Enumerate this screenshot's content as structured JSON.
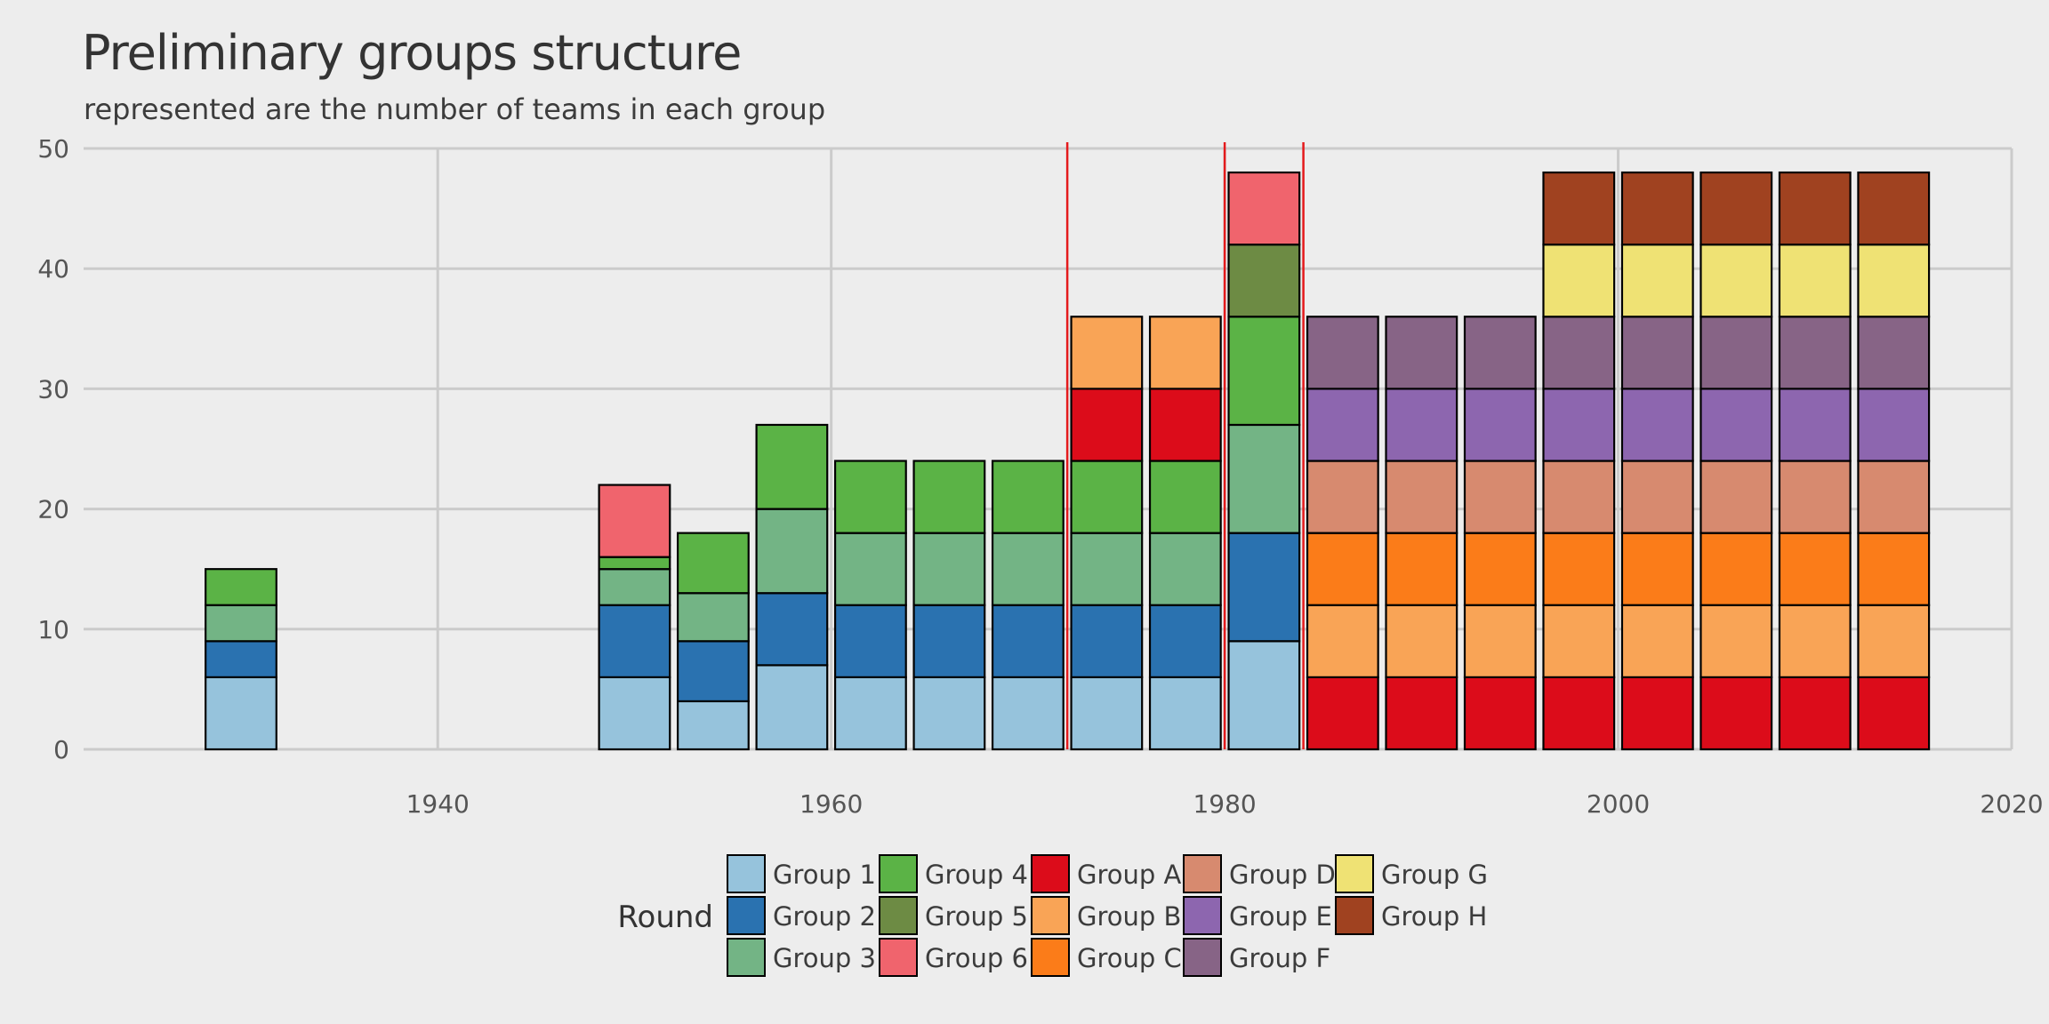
{
  "chart_data": {
    "type": "bar",
    "stacked": true,
    "title": "Preliminary groups structure",
    "subtitle": "represented are the number of teams in each group",
    "xlabel": "",
    "ylabel": "",
    "xlim": [
      1922,
      2020
    ],
    "ylim": [
      0,
      50
    ],
    "x_ticks": [
      1940,
      1960,
      1980,
      2000,
      2020
    ],
    "y_ticks": [
      0,
      10,
      20,
      30,
      40,
      50
    ],
    "grid": true,
    "bar_width_years": 3.6,
    "vertical_lines": [
      1972,
      1980,
      1984
    ],
    "vertical_line_color": "#e41a1c",
    "legend": {
      "title": "Round",
      "position": "bottom",
      "columns": [
        [
          "Group 1",
          "Group 2",
          "Group 3"
        ],
        [
          "Group 4",
          "Group 5",
          "Group 6"
        ],
        [
          "Group A",
          "Group B",
          "Group C"
        ],
        [
          "Group D",
          "Group E",
          "Group F"
        ],
        [
          "Group G",
          "Group H"
        ]
      ]
    },
    "colors": {
      "Group 1": "#96c3dc",
      "Group 2": "#2a72b0",
      "Group 3": "#73b485",
      "Group 4": "#5bb346",
      "Group 5": "#6d8b44",
      "Group 6": "#f0646d",
      "Group A": "#dc0c1a",
      "Group B": "#f9a456",
      "Group C": "#fb7c19",
      "Group D": "#d78a6f",
      "Group E": "#8d66af",
      "Group F": "#876486",
      "Group G": "#efe274",
      "Group H": "#a04220"
    },
    "bars": [
      {
        "x": 1930,
        "segments": [
          {
            "group": "Group 1",
            "value": 6
          },
          {
            "group": "Group 2",
            "value": 3
          },
          {
            "group": "Group 3",
            "value": 3
          },
          {
            "group": "Group 4",
            "value": 3
          }
        ]
      },
      {
        "x": 1950,
        "segments": [
          {
            "group": "Group 1",
            "value": 6
          },
          {
            "group": "Group 2",
            "value": 6
          },
          {
            "group": "Group 3",
            "value": 3
          },
          {
            "group": "Group 4",
            "value": 1
          },
          {
            "group": "Group 6",
            "value": 6
          }
        ]
      },
      {
        "x": 1954,
        "segments": [
          {
            "group": "Group 1",
            "value": 4
          },
          {
            "group": "Group 2",
            "value": 5
          },
          {
            "group": "Group 3",
            "value": 4
          },
          {
            "group": "Group 4",
            "value": 5
          }
        ]
      },
      {
        "x": 1958,
        "segments": [
          {
            "group": "Group 1",
            "value": 7
          },
          {
            "group": "Group 2",
            "value": 6
          },
          {
            "group": "Group 3",
            "value": 7
          },
          {
            "group": "Group 4",
            "value": 7
          }
        ]
      },
      {
        "x": 1962,
        "segments": [
          {
            "group": "Group 1",
            "value": 6
          },
          {
            "group": "Group 2",
            "value": 6
          },
          {
            "group": "Group 3",
            "value": 6
          },
          {
            "group": "Group 4",
            "value": 6
          }
        ]
      },
      {
        "x": 1966,
        "segments": [
          {
            "group": "Group 1",
            "value": 6
          },
          {
            "group": "Group 2",
            "value": 6
          },
          {
            "group": "Group 3",
            "value": 6
          },
          {
            "group": "Group 4",
            "value": 6
          }
        ]
      },
      {
        "x": 1970,
        "segments": [
          {
            "group": "Group 1",
            "value": 6
          },
          {
            "group": "Group 2",
            "value": 6
          },
          {
            "group": "Group 3",
            "value": 6
          },
          {
            "group": "Group 4",
            "value": 6
          }
        ]
      },
      {
        "x": 1974,
        "segments": [
          {
            "group": "Group 1",
            "value": 6
          },
          {
            "group": "Group 2",
            "value": 6
          },
          {
            "group": "Group 3",
            "value": 6
          },
          {
            "group": "Group 4",
            "value": 6
          },
          {
            "group": "Group A",
            "value": 6
          },
          {
            "group": "Group B",
            "value": 6
          }
        ]
      },
      {
        "x": 1978,
        "segments": [
          {
            "group": "Group 1",
            "value": 6
          },
          {
            "group": "Group 2",
            "value": 6
          },
          {
            "group": "Group 3",
            "value": 6
          },
          {
            "group": "Group 4",
            "value": 6
          },
          {
            "group": "Group A",
            "value": 6
          },
          {
            "group": "Group B",
            "value": 6
          }
        ]
      },
      {
        "x": 1982,
        "segments": [
          {
            "group": "Group 1",
            "value": 9
          },
          {
            "group": "Group 2",
            "value": 9
          },
          {
            "group": "Group 3",
            "value": 9
          },
          {
            "group": "Group 4",
            "value": 9
          },
          {
            "group": "Group 5",
            "value": 6
          },
          {
            "group": "Group 6",
            "value": 6
          }
        ]
      },
      {
        "x": 1986,
        "segments": [
          {
            "group": "Group A",
            "value": 6
          },
          {
            "group": "Group B",
            "value": 6
          },
          {
            "group": "Group C",
            "value": 6
          },
          {
            "group": "Group D",
            "value": 6
          },
          {
            "group": "Group E",
            "value": 6
          },
          {
            "group": "Group F",
            "value": 6
          }
        ]
      },
      {
        "x": 1990,
        "segments": [
          {
            "group": "Group A",
            "value": 6
          },
          {
            "group": "Group B",
            "value": 6
          },
          {
            "group": "Group C",
            "value": 6
          },
          {
            "group": "Group D",
            "value": 6
          },
          {
            "group": "Group E",
            "value": 6
          },
          {
            "group": "Group F",
            "value": 6
          }
        ]
      },
      {
        "x": 1994,
        "segments": [
          {
            "group": "Group A",
            "value": 6
          },
          {
            "group": "Group B",
            "value": 6
          },
          {
            "group": "Group C",
            "value": 6
          },
          {
            "group": "Group D",
            "value": 6
          },
          {
            "group": "Group E",
            "value": 6
          },
          {
            "group": "Group F",
            "value": 6
          }
        ]
      },
      {
        "x": 1998,
        "segments": [
          {
            "group": "Group A",
            "value": 6
          },
          {
            "group": "Group B",
            "value": 6
          },
          {
            "group": "Group C",
            "value": 6
          },
          {
            "group": "Group D",
            "value": 6
          },
          {
            "group": "Group E",
            "value": 6
          },
          {
            "group": "Group F",
            "value": 6
          },
          {
            "group": "Group G",
            "value": 6
          },
          {
            "group": "Group H",
            "value": 6
          }
        ]
      },
      {
        "x": 2002,
        "segments": [
          {
            "group": "Group A",
            "value": 6
          },
          {
            "group": "Group B",
            "value": 6
          },
          {
            "group": "Group C",
            "value": 6
          },
          {
            "group": "Group D",
            "value": 6
          },
          {
            "group": "Group E",
            "value": 6
          },
          {
            "group": "Group F",
            "value": 6
          },
          {
            "group": "Group G",
            "value": 6
          },
          {
            "group": "Group H",
            "value": 6
          }
        ]
      },
      {
        "x": 2006,
        "segments": [
          {
            "group": "Group A",
            "value": 6
          },
          {
            "group": "Group B",
            "value": 6
          },
          {
            "group": "Group C",
            "value": 6
          },
          {
            "group": "Group D",
            "value": 6
          },
          {
            "group": "Group E",
            "value": 6
          },
          {
            "group": "Group F",
            "value": 6
          },
          {
            "group": "Group G",
            "value": 6
          },
          {
            "group": "Group H",
            "value": 6
          }
        ]
      },
      {
        "x": 2010,
        "segments": [
          {
            "group": "Group A",
            "value": 6
          },
          {
            "group": "Group B",
            "value": 6
          },
          {
            "group": "Group C",
            "value": 6
          },
          {
            "group": "Group D",
            "value": 6
          },
          {
            "group": "Group E",
            "value": 6
          },
          {
            "group": "Group F",
            "value": 6
          },
          {
            "group": "Group G",
            "value": 6
          },
          {
            "group": "Group H",
            "value": 6
          }
        ]
      },
      {
        "x": 2014,
        "segments": [
          {
            "group": "Group A",
            "value": 6
          },
          {
            "group": "Group B",
            "value": 6
          },
          {
            "group": "Group C",
            "value": 6
          },
          {
            "group": "Group D",
            "value": 6
          },
          {
            "group": "Group E",
            "value": 6
          },
          {
            "group": "Group F",
            "value": 6
          },
          {
            "group": "Group G",
            "value": 6
          },
          {
            "group": "Group H",
            "value": 6
          }
        ]
      }
    ]
  }
}
